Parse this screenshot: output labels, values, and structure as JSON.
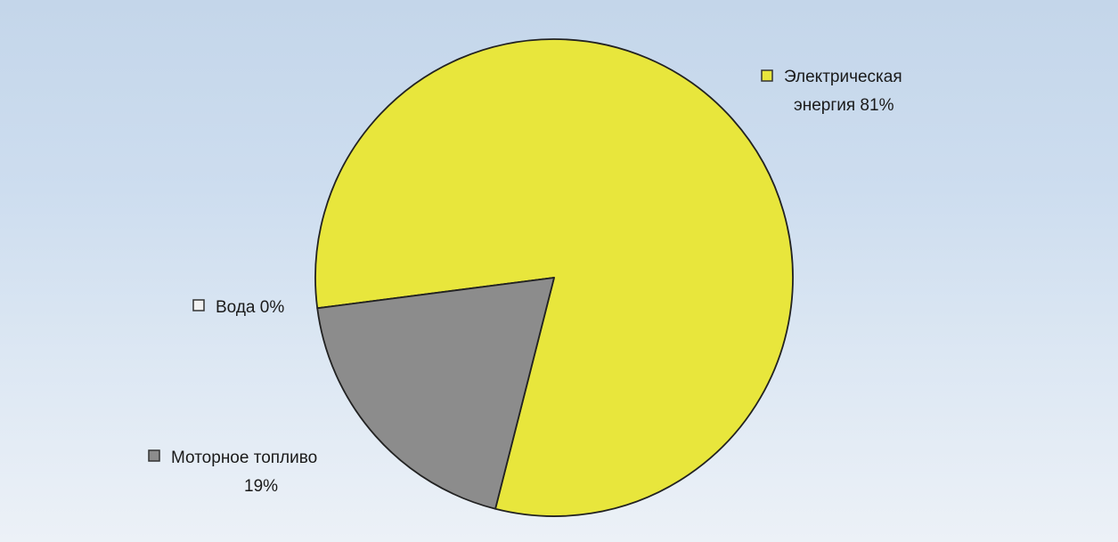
{
  "chart_data": {
    "type": "pie",
    "title": "",
    "slices": [
      {
        "label": "Электрическая энергия",
        "value": 81,
        "value_text": "81%",
        "color": "#e8e63c"
      },
      {
        "label": "Вода",
        "value": 0,
        "value_text": "0%",
        "color": "#f2f2f2"
      },
      {
        "label": "Моторное топливо",
        "value": 19,
        "value_text": "19%",
        "color": "#8c8c8c"
      }
    ],
    "legend": "labels next to slices"
  },
  "labels": {
    "electric_line1": "Электрическая",
    "electric_line2": "энергия 81%",
    "water": "Вода 0%",
    "motor_line1": "Моторное топливо",
    "motor_line2": "19%"
  }
}
